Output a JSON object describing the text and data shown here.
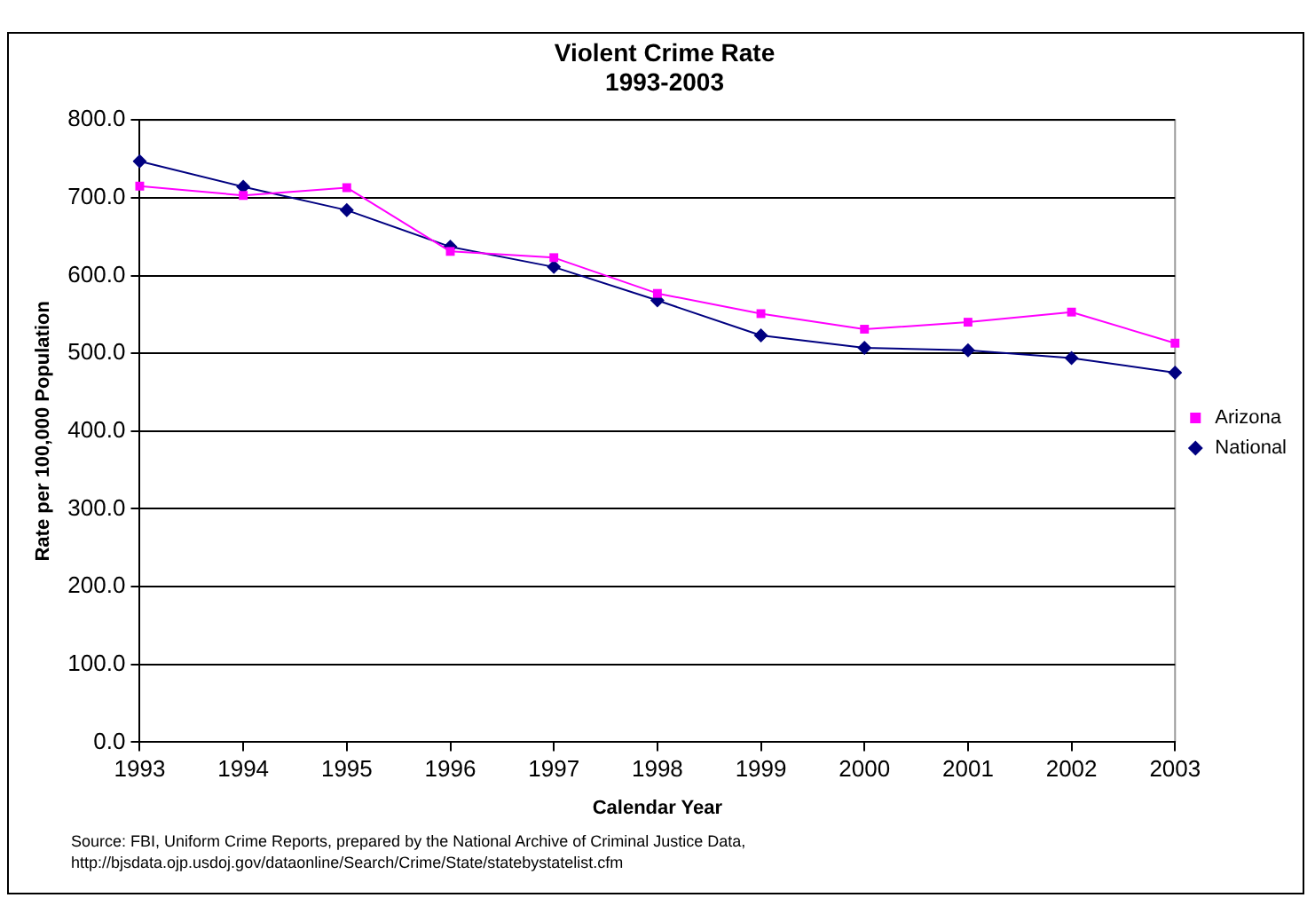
{
  "chart_data": {
    "type": "line",
    "title": "Violent Crime Rate",
    "subtitle": "1993-2003",
    "xlabel": "Calendar Year",
    "ylabel": "Rate per 100,000 Population",
    "categories": [
      "1993",
      "1994",
      "1995",
      "1996",
      "1997",
      "1998",
      "1999",
      "2000",
      "2001",
      "2002",
      "2003"
    ],
    "series": [
      {
        "name": "Arizona",
        "color": "#ff00ff",
        "marker": "square",
        "values": [
          715,
          703,
          713,
          631,
          623,
          577,
          551,
          531,
          540,
          553,
          513
        ]
      },
      {
        "name": "National",
        "color": "#000080",
        "marker": "diamond",
        "values": [
          747,
          714,
          684,
          637,
          611,
          568,
          523,
          507,
          504,
          494,
          475
        ]
      }
    ],
    "ylim": [
      0,
      800
    ],
    "yticks": [
      {
        "value": 0,
        "label": "0.0"
      },
      {
        "value": 100,
        "label": "100.0"
      },
      {
        "value": 200,
        "label": "200.0"
      },
      {
        "value": 300,
        "label": "300.0"
      },
      {
        "value": 400,
        "label": "400.0"
      },
      {
        "value": 500,
        "label": "500.0"
      },
      {
        "value": 600,
        "label": "600.0"
      },
      {
        "value": 700,
        "label": "700.0"
      },
      {
        "value": 800,
        "label": "800.0"
      }
    ],
    "grid": "y",
    "legend": "right",
    "line_style": "solid",
    "annotations": [
      "Source: FBI, Uniform Crime Reports, prepared by the National Archive of Criminal Justice Data,",
      "http://bjsdata.ojp.usdoj.gov/dataonline/Search/Crime/State/statebystatelist.cfm"
    ]
  }
}
